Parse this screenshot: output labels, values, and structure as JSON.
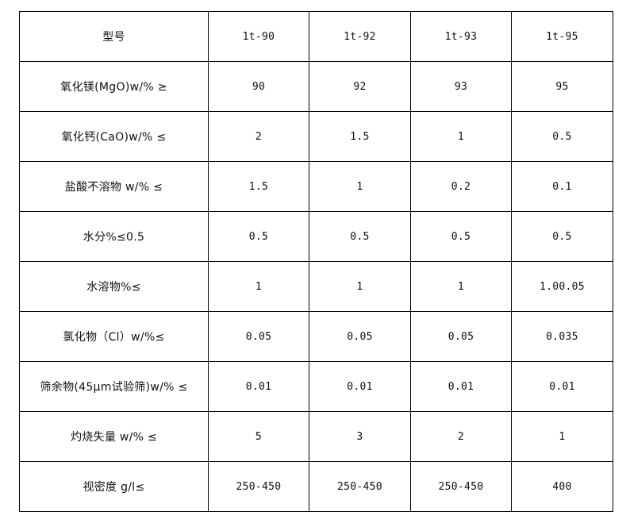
{
  "table": {
    "header": [
      "型号",
      "1t-90",
      "1t-92",
      "1t-93",
      "1t-95"
    ],
    "rows": [
      [
        "氧化镁(MgO)w/% ≥",
        "90",
        "92",
        "93",
        "95"
      ],
      [
        "氧化钙(CaO)w/% ≤",
        "2",
        "1.5",
        "1",
        "0.5"
      ],
      [
        "盐酸不溶物 w/% ≤",
        "1.5",
        "1",
        "0.2",
        "0.1"
      ],
      [
        "水分%≤0.5",
        "0.5",
        "0.5",
        "0.5",
        "0.5"
      ],
      [
        "水溶物%≤",
        "1",
        "1",
        "1",
        "1.00.05"
      ],
      [
        "氯化物（Cl）w/%≤",
        "0.05",
        "0.05",
        "0.05",
        "0.035"
      ],
      [
        "筛余物(45μm试验筛)w/% ≤",
        "0.01",
        "0.01",
        "0.01",
        "0.01"
      ],
      [
        "灼烧失量 w/% ≤",
        "5",
        "3",
        "2",
        "1"
      ],
      [
        "视密度 g/l≤",
        "250-450",
        "250-450",
        "250-450",
        "400"
      ]
    ]
  }
}
